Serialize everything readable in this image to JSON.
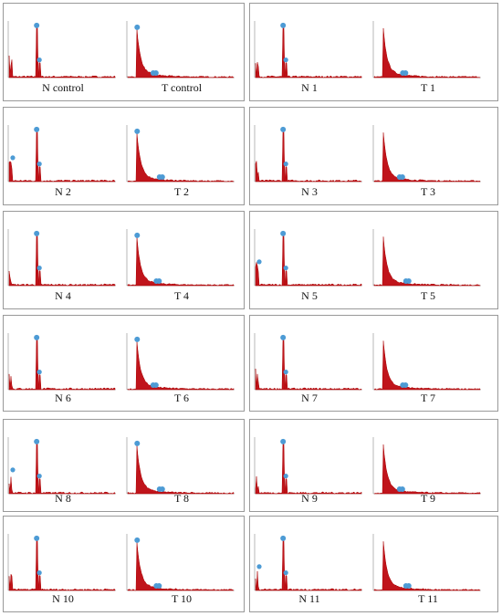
{
  "panels": [
    {
      "left": "N control",
      "right": "T control"
    },
    {
      "left": "N 1",
      "right": "T 1"
    },
    {
      "left": "N 2",
      "right": "T 2"
    },
    {
      "left": "N 3",
      "right": "T 3"
    },
    {
      "left": "N 4",
      "right": "T 4"
    },
    {
      "left": "N 5",
      "right": "T 5"
    },
    {
      "left": "N 6",
      "right": "T 6"
    },
    {
      "left": "N 7",
      "right": "T 7"
    },
    {
      "left": "N 8",
      "right": "T 8"
    },
    {
      "left": "N 9",
      "right": "T 9"
    },
    {
      "left": "N 10",
      "right": "T 10"
    },
    {
      "left": "N 11",
      "right": "T 11"
    }
  ]
}
